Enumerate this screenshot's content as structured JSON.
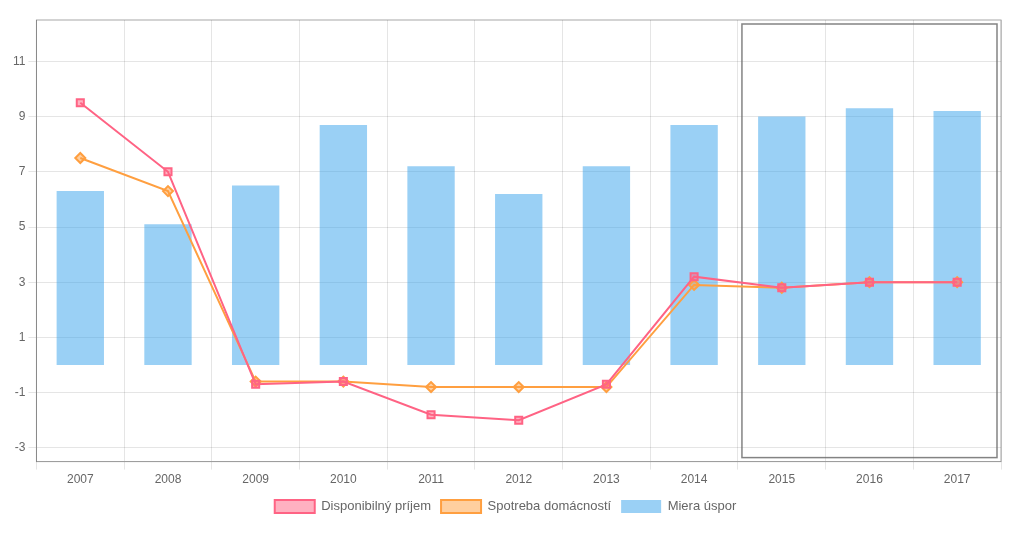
{
  "chart_data": {
    "type": "bar",
    "categories": [
      "2007",
      "2008",
      "2009",
      "2010",
      "2011",
      "2012",
      "2013",
      "2014",
      "2015",
      "2016",
      "2017"
    ],
    "series": [
      {
        "name": "Miera úspor",
        "type": "bar",
        "values": [
          6.3,
          5.1,
          6.5,
          8.7,
          7.2,
          6.2,
          7.2,
          8.7,
          9.0,
          9.3,
          9.2
        ]
      },
      {
        "name": "Disponibilný príjem",
        "type": "line",
        "marker": "square",
        "values": [
          9.5,
          7.0,
          -0.7,
          -0.6,
          -1.8,
          -2.0,
          -0.7,
          3.2,
          2.8,
          3.0,
          3.0
        ]
      },
      {
        "name": "Spotreba domácností",
        "type": "line",
        "marker": "diamond",
        "values": [
          7.5,
          6.3,
          -0.6,
          -0.6,
          -0.8,
          -0.8,
          -0.8,
          2.9,
          2.8,
          3.0,
          3.0
        ]
      }
    ],
    "ylim": [
      -3.5,
      12.5
    ],
    "yticks": [
      -3,
      -1,
      1,
      3,
      5,
      7,
      9,
      11
    ],
    "grid": true,
    "legend": "bottom",
    "forecast_start": "2015"
  }
}
